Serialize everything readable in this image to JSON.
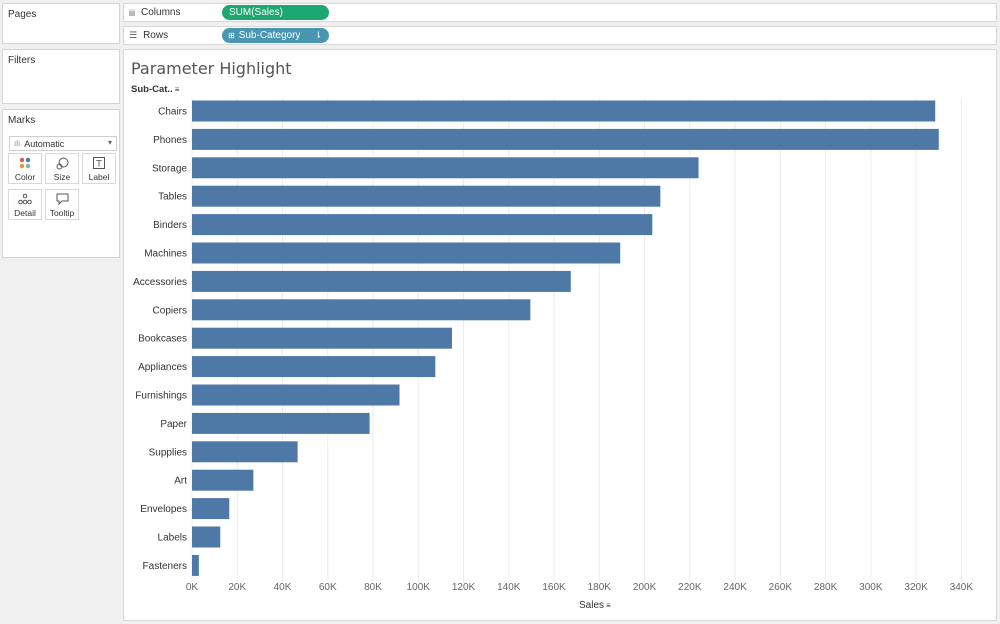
{
  "panels": {
    "pages": "Pages",
    "filters": "Filters",
    "marks": "Marks"
  },
  "marks_card": {
    "type": "Automatic",
    "buttons": [
      {
        "label": "Color",
        "icon": "color-dots-icon"
      },
      {
        "label": "Size",
        "icon": "size-shapes-icon"
      },
      {
        "label": "Label",
        "icon": "label-text-icon"
      },
      {
        "label": "Detail",
        "icon": "detail-dots-icon"
      },
      {
        "label": "Tooltip",
        "icon": "tooltip-bubble-icon"
      }
    ]
  },
  "shelves": {
    "columns": {
      "label": "Columns",
      "icon": "columns-icon",
      "pill": "SUM(Sales)"
    },
    "rows": {
      "label": "Rows",
      "icon": "rows-icon",
      "pill": "Sub-Category"
    }
  },
  "viz": {
    "title": "Parameter Highlight",
    "row_header": "Sub-Cat..",
    "x_title": "Sales"
  },
  "colors": {
    "bar": "#4e79a7",
    "sales_pill": "#1ea871",
    "subcategory_pill": "#4996b2"
  },
  "chart_data": {
    "type": "bar",
    "orientation": "horizontal",
    "categories": [
      "Chairs",
      "Phones",
      "Storage",
      "Tables",
      "Binders",
      "Machines",
      "Accessories",
      "Copiers",
      "Bookcases",
      "Appliances",
      "Furnishings",
      "Paper",
      "Supplies",
      "Art",
      "Envelopes",
      "Labels",
      "Fasteners"
    ],
    "values": [
      328449,
      330007,
      223844,
      206966,
      203413,
      189239,
      167380,
      149528,
      114880,
      107532,
      91705,
      78479,
      46674,
      27119,
      16476,
      12486,
      3024
    ],
    "xlabel": "Sales",
    "ylabel": "Sub-Cat..",
    "xlim": [
      0,
      350000
    ],
    "x_ticks": [
      "0K",
      "20K",
      "40K",
      "60K",
      "80K",
      "100K",
      "120K",
      "140K",
      "160K",
      "180K",
      "200K",
      "220K",
      "240K",
      "260K",
      "280K",
      "300K",
      "320K",
      "340K"
    ],
    "grid": true
  }
}
